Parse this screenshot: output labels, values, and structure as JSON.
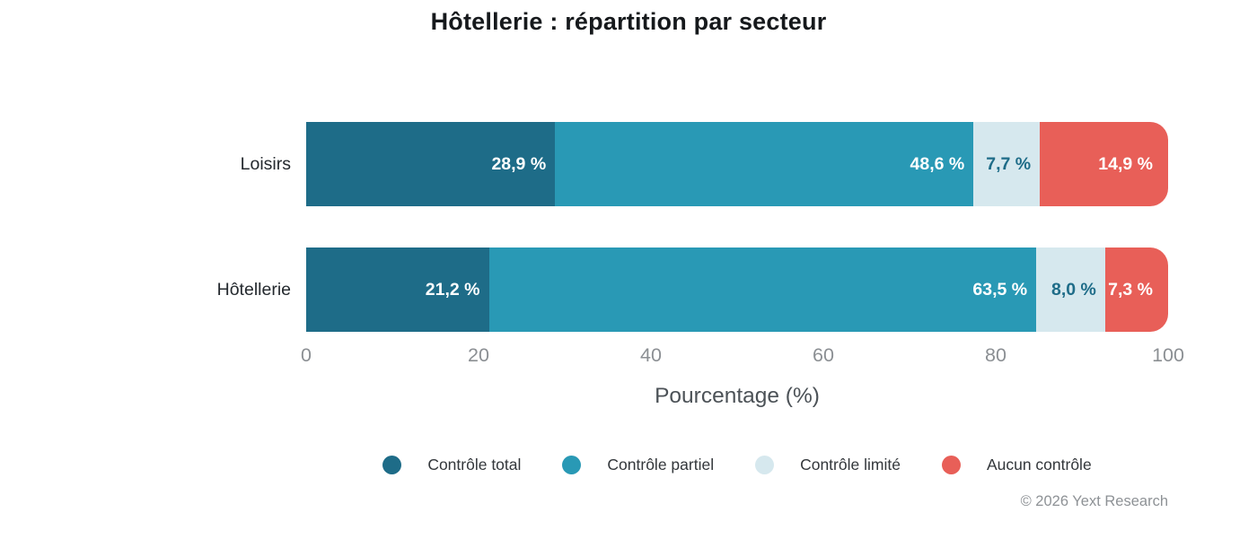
{
  "title": "Hôtellerie : répartition par secteur",
  "chart_data": {
    "type": "bar",
    "orientation": "horizontal-stacked",
    "title": "Hôtellerie : répartition par secteur",
    "categories": [
      "Loisirs",
      "Hôtellerie"
    ],
    "series": [
      {
        "name": "Contrôle total",
        "color": "#1e6c88",
        "values": [
          28.9,
          21.2
        ],
        "labels": [
          "28,9 %",
          "21,2 %"
        ]
      },
      {
        "name": "Contrôle partiel",
        "color": "#2999b5",
        "values": [
          48.6,
          63.5
        ],
        "labels": [
          "48,6 %",
          "63,5 %"
        ]
      },
      {
        "name": "Contrôle limité",
        "color": "#d6e8ee",
        "label_color": "#1e6c88",
        "values": [
          7.7,
          8.0
        ],
        "labels": [
          "7,7 %",
          "8,0 %"
        ]
      },
      {
        "name": "Aucun contrôle",
        "color": "#e85f58",
        "values": [
          14.9,
          7.3
        ],
        "labels": [
          "14,9 %",
          "7,3 %"
        ]
      }
    ],
    "xlabel": "Pourcentage (%)",
    "xlim": [
      0,
      100
    ],
    "xticks": [
      0,
      20,
      40,
      60,
      80,
      100
    ],
    "grid": false,
    "legend_position": "bottom",
    "value_label_color_default": "#ffffff"
  },
  "footer": {
    "copyright": "© 2026 Yext Research"
  }
}
